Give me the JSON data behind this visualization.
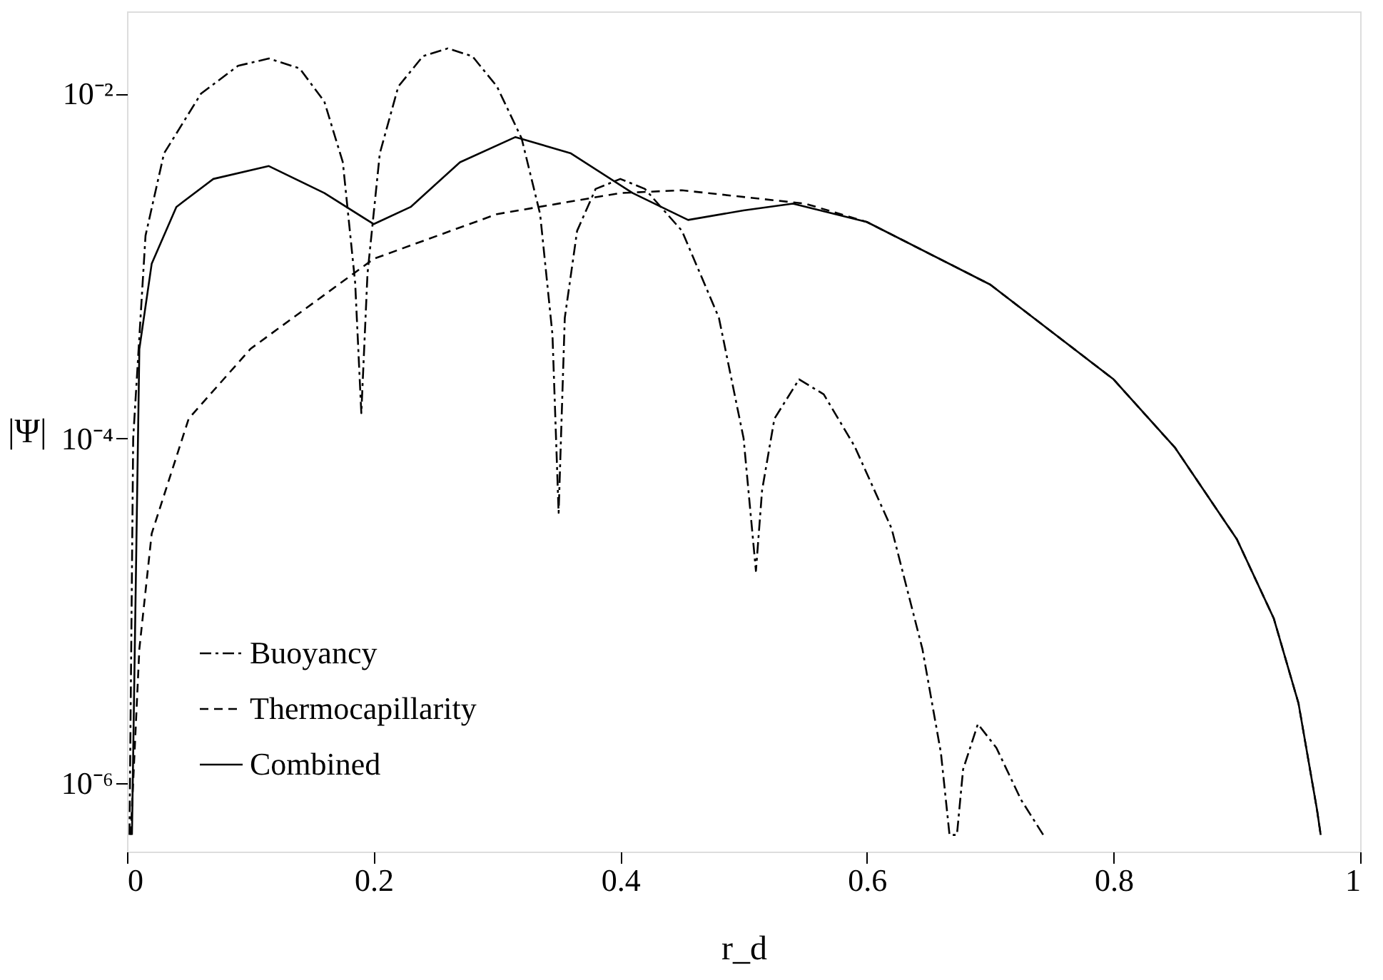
{
  "chart_data": {
    "type": "line",
    "xlabel": "r_d",
    "ylabel": "|Ψ|",
    "log": true,
    "xlim": [
      0,
      1
    ],
    "xticks": [
      0,
      0.2,
      0.4,
      0.6,
      0.8,
      1
    ],
    "ylim": [
      4e-07,
      0.03
    ],
    "yticks": [
      {
        "value": 0.01,
        "label": "10⁻²"
      },
      {
        "value": 0.0001,
        "label": "10⁻⁴"
      },
      {
        "value": 1e-06,
        "label": "10⁻⁶"
      }
    ],
    "grid": false,
    "legend": "bottom left",
    "series": [
      {
        "name": "Buoyancy",
        "color": "#000000",
        "line_style": "dashdot",
        "x": [
          0.002,
          0.005,
          0.015,
          0.03,
          0.06,
          0.09,
          0.115,
          0.14,
          0.16,
          0.175,
          0.185,
          0.19,
          0.195,
          0.205,
          0.22,
          0.24,
          0.26,
          0.28,
          0.3,
          0.32,
          0.335,
          0.345,
          0.35,
          0.355,
          0.365,
          0.38,
          0.4,
          0.42,
          0.45,
          0.48,
          0.5,
          0.51,
          0.515,
          0.525,
          0.545,
          0.565,
          0.59,
          0.62,
          0.645,
          0.66,
          0.667,
          0.673,
          0.678,
          0.69,
          0.705,
          0.725,
          0.743
        ],
        "values": [
          5e-07,
          0.0001,
          0.0015,
          0.0045,
          0.01,
          0.0145,
          0.016,
          0.014,
          0.009,
          0.004,
          0.0008,
          0.00014,
          0.0009,
          0.0045,
          0.011,
          0.0165,
          0.0183,
          0.0165,
          0.011,
          0.0055,
          0.002,
          0.0004,
          3.7e-05,
          0.0005,
          0.0016,
          0.0028,
          0.0032,
          0.0028,
          0.0016,
          0.0005,
          0.0001,
          1.7e-05,
          5e-05,
          0.00013,
          0.00022,
          0.00018,
          9e-05,
          3e-05,
          6e-06,
          1.5e-06,
          5e-07,
          5e-07,
          1.2e-06,
          2.2e-06,
          1.6e-06,
          8e-07,
          5e-07
        ]
      },
      {
        "name": "Thermocapillarity",
        "color": "#000000",
        "line_style": "dashed",
        "x": [
          0.003,
          0.01,
          0.02,
          0.05,
          0.1,
          0.2,
          0.3,
          0.4,
          0.45,
          0.55,
          0.6,
          0.7,
          0.8,
          0.85,
          0.9,
          0.93,
          0.95,
          0.965,
          0.968
        ],
        "values": [
          5e-07,
          6e-06,
          2.8e-05,
          0.00013,
          0.00033,
          0.0011,
          0.002,
          0.00265,
          0.00275,
          0.0023,
          0.0018,
          0.00078,
          0.00022,
          8.8e-05,
          2.6e-05,
          9e-06,
          2.9e-06,
          7e-07,
          5e-07
        ]
      },
      {
        "name": "Combined",
        "color": "#000000",
        "line_style": "solid",
        "x": [
          0.004,
          0.01,
          0.02,
          0.04,
          0.07,
          0.115,
          0.16,
          0.2,
          0.23,
          0.27,
          0.315,
          0.36,
          0.41,
          0.455,
          0.5,
          0.54,
          0.6,
          0.7,
          0.8,
          0.85,
          0.9,
          0.93,
          0.95,
          0.965,
          0.968
        ],
        "values": [
          5e-07,
          0.00033,
          0.00103,
          0.0022,
          0.0032,
          0.0038,
          0.00265,
          0.00175,
          0.0022,
          0.004,
          0.0056,
          0.0045,
          0.00265,
          0.00185,
          0.0021,
          0.0023,
          0.0018,
          0.00078,
          0.00022,
          8.8e-05,
          2.6e-05,
          9e-06,
          2.9e-06,
          7e-07,
          5e-07
        ]
      }
    ]
  }
}
